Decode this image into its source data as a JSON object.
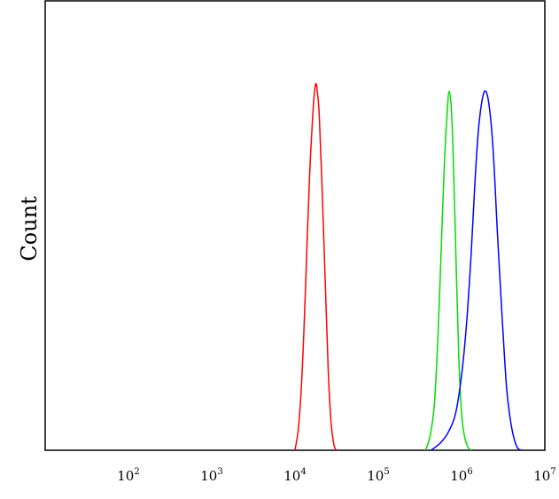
{
  "chart_data": {
    "type": "line",
    "title": "",
    "xlabel": "",
    "ylabel": "Count",
    "xscale": "log",
    "xlim": [
      10,
      10000000
    ],
    "ylim": [
      0,
      1.0
    ],
    "grid": false,
    "legend": "none",
    "x_ticks": [
      {
        "value": 100,
        "base": "10",
        "exp": "2"
      },
      {
        "value": 1000,
        "base": "10",
        "exp": "3"
      },
      {
        "value": 10000,
        "base": "10",
        "exp": "4"
      },
      {
        "value": 100000,
        "base": "10",
        "exp": "5"
      },
      {
        "value": 1000000,
        "base": "10",
        "exp": "6"
      },
      {
        "value": 10000000,
        "base": "10",
        "exp": "7"
      }
    ],
    "series": [
      {
        "color": "#ff0000",
        "peak_x": 18000,
        "x": [
          10000,
          11000,
          12000,
          13000,
          14000,
          15000,
          16000,
          17000,
          17800,
          18500,
          19500,
          21000,
          23000,
          25000,
          27000,
          29000,
          31000
        ],
        "y": [
          0.0,
          0.06,
          0.18,
          0.36,
          0.56,
          0.74,
          0.86,
          0.95,
          0.98,
          0.96,
          0.9,
          0.72,
          0.46,
          0.22,
          0.08,
          0.02,
          0.0
        ]
      },
      {
        "color": "#00dd00",
        "peak_x": 700000,
        "x": [
          370000,
          420000,
          470000,
          520000,
          570000,
          620000,
          670000,
          710000,
          760000,
          810000,
          870000,
          930000,
          1000000,
          1080000,
          1180000,
          1300000
        ],
        "y": [
          0.0,
          0.04,
          0.12,
          0.3,
          0.54,
          0.76,
          0.9,
          0.96,
          0.9,
          0.72,
          0.46,
          0.24,
          0.1,
          0.04,
          0.01,
          0.0
        ]
      },
      {
        "color": "#0000ff",
        "peak_x": 1950000,
        "x": [
          430000,
          560000,
          700000,
          850000,
          1000000,
          1150000,
          1300000,
          1450000,
          1600000,
          1780000,
          1950000,
          2150000,
          2400000,
          2700000,
          3100000,
          3500000,
          4000000,
          4600000,
          5200000
        ],
        "y": [
          0.0,
          0.02,
          0.05,
          0.1,
          0.2,
          0.34,
          0.52,
          0.72,
          0.86,
          0.94,
          0.96,
          0.92,
          0.8,
          0.58,
          0.34,
          0.16,
          0.06,
          0.01,
          0.0
        ]
      }
    ]
  }
}
